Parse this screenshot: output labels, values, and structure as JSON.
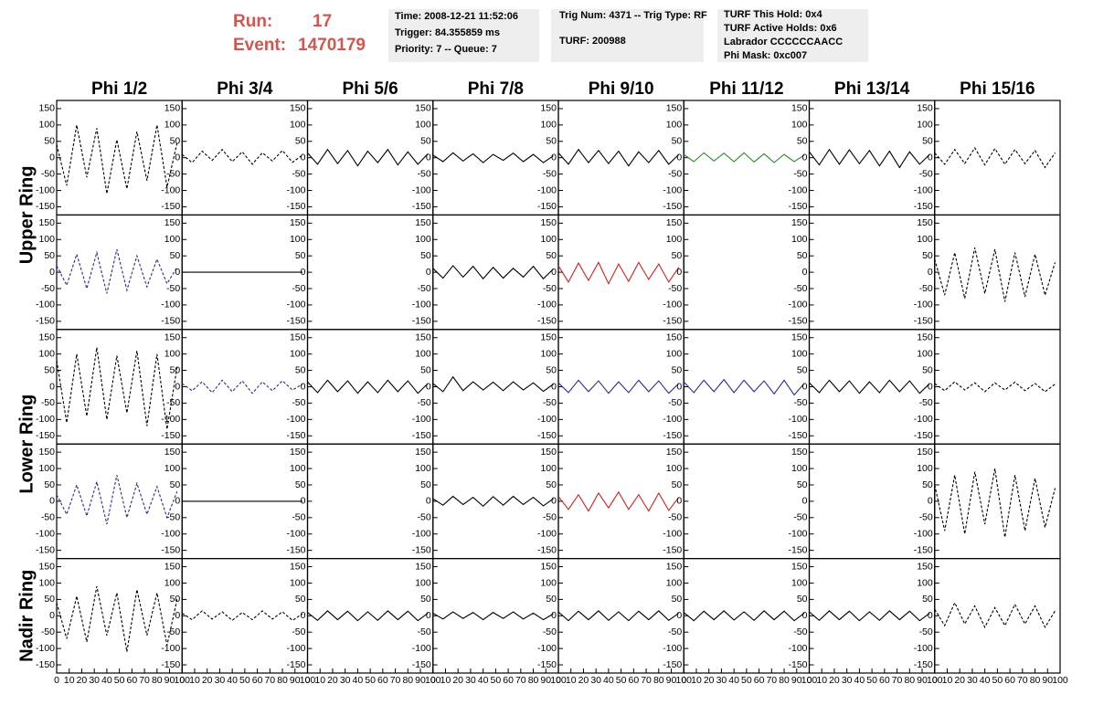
{
  "header": {
    "run_label": "Run:",
    "run": "17",
    "event_label": "Event:",
    "event": "1470179",
    "info_1": [
      "Time: 2008-12-21 11:52:06",
      "Trigger: 84.355859 ms",
      "Priority: 7 -- Queue: 7"
    ],
    "info_2": [
      "Trig Num: 4371 -- Trig Type: RF",
      "TURF: 200988"
    ],
    "info_3": [
      "TURF This Hold: 0x4",
      "TURF Active Holds: 0x6",
      "Labrador CCCCCCAACC",
      "Phi Mask: 0xc007"
    ]
  },
  "chart_data": {
    "type": "line",
    "columns": [
      "Phi 1/2",
      "Phi 3/4",
      "Phi 5/6",
      "Phi 7/8",
      "Phi 9/10",
      "Phi 11/12",
      "Phi 13/14",
      "Phi 15/16"
    ],
    "rings": [
      "Upper Ring",
      "Lower Ring",
      "Nadir Ring"
    ],
    "xlim": [
      0,
      100
    ],
    "xticks": [
      0,
      10,
      20,
      30,
      40,
      50,
      60,
      70,
      80,
      90,
      100
    ],
    "ylim": [
      -175,
      175
    ],
    "yticks": [
      150,
      100,
      50,
      0,
      -50,
      -100,
      -150
    ],
    "x": [
      0,
      8,
      16,
      24,
      32,
      40,
      48,
      56,
      64,
      72,
      80,
      88,
      96
    ],
    "panels": [
      [
        {
          "color": "#000000",
          "dashed": true,
          "values": [
            40,
            -85,
            100,
            -60,
            90,
            -110,
            55,
            -95,
            80,
            -70,
            100,
            -90,
            45
          ]
        },
        {
          "color": "#000000",
          "dashed": true,
          "values": [
            10,
            -15,
            20,
            -8,
            25,
            -12,
            18,
            -20,
            15,
            -10,
            22,
            -14,
            8
          ]
        },
        {
          "color": "#000000",
          "dashed": false,
          "values": [
            15,
            -20,
            25,
            -18,
            22,
            -25,
            20,
            -15,
            25,
            -22,
            18,
            -20,
            12
          ]
        },
        {
          "color": "#000000",
          "dashed": false,
          "values": [
            8,
            -12,
            15,
            -10,
            12,
            -15,
            10,
            -8,
            14,
            -12,
            10,
            -15,
            6
          ]
        },
        {
          "color": "#000000",
          "dashed": false,
          "values": [
            15,
            -20,
            25,
            -15,
            22,
            -18,
            20,
            -25,
            18,
            -15,
            22,
            -20,
            10
          ]
        },
        {
          "color": "#2e8b2e",
          "dashed": false,
          "values": [
            10,
            -12,
            15,
            -10,
            14,
            -12,
            15,
            -13,
            12,
            -15,
            10,
            -12,
            8
          ]
        },
        {
          "color": "#000000",
          "dashed": false,
          "values": [
            18,
            -22,
            25,
            -20,
            24,
            -18,
            22,
            -25,
            20,
            -30,
            18,
            -20,
            10
          ]
        },
        {
          "color": "#000000",
          "dashed": true,
          "values": [
            15,
            -20,
            25,
            -18,
            30,
            -22,
            28,
            -20,
            25,
            -18,
            22,
            -30,
            15
          ]
        }
      ],
      [
        {
          "color": "#2b2b8f",
          "dashed": true,
          "values": [
            20,
            -40,
            55,
            -50,
            60,
            -65,
            70,
            -55,
            50,
            -45,
            40,
            -35,
            15
          ]
        },
        {
          "color": "#000000",
          "dashed": false,
          "values": [
            0,
            0,
            0,
            0,
            0,
            0,
            0,
            0,
            0,
            0,
            0,
            0,
            0
          ]
        },
        {
          "color": "#000000",
          "dashed": false,
          "values": []
        },
        {
          "color": "#000000",
          "dashed": false,
          "values": [
            12,
            -18,
            20,
            -15,
            18,
            -20,
            15,
            -18,
            12,
            -15,
            18,
            -20,
            10
          ]
        },
        {
          "color": "#cc2222",
          "dashed": false,
          "values": [
            20,
            -30,
            28,
            -25,
            30,
            -35,
            25,
            -28,
            30,
            -22,
            25,
            -30,
            15
          ]
        },
        {
          "color": "#000000",
          "dashed": false,
          "values": []
        },
        {
          "color": "#000000",
          "dashed": false,
          "values": []
        },
        {
          "color": "#000000",
          "dashed": true,
          "values": [
            40,
            -70,
            60,
            -80,
            75,
            -65,
            70,
            -90,
            60,
            -75,
            55,
            -70,
            30
          ]
        }
      ],
      [
        {
          "color": "#000000",
          "dashed": true,
          "values": [
            80,
            -110,
            100,
            -90,
            120,
            -100,
            95,
            -80,
            110,
            -120,
            100,
            -130,
            60
          ]
        },
        {
          "color": "#2b2b8f",
          "dashed": true,
          "values": [
            10,
            -12,
            15,
            -18,
            20,
            -15,
            18,
            -20,
            15,
            -12,
            18,
            -10,
            8
          ]
        },
        {
          "color": "#000000",
          "dashed": false,
          "values": [
            15,
            -18,
            20,
            -15,
            18,
            -20,
            15,
            -18,
            20,
            -15,
            18,
            -20,
            10
          ]
        },
        {
          "color": "#000000",
          "dashed": false,
          "values": [
            10,
            -15,
            30,
            -12,
            15,
            -10,
            14,
            -12,
            15,
            -10,
            12,
            -14,
            8
          ]
        },
        {
          "color": "#2b2b8f",
          "dashed": false,
          "values": [
            12,
            -18,
            20,
            -15,
            18,
            -20,
            15,
            -18,
            20,
            -15,
            18,
            -20,
            10
          ]
        },
        {
          "color": "#2b2b8f",
          "dashed": false,
          "values": [
            15,
            -18,
            20,
            -15,
            22,
            -18,
            20,
            -15,
            18,
            -22,
            20,
            -25,
            10
          ]
        },
        {
          "color": "#000000",
          "dashed": false,
          "values": [
            12,
            -18,
            20,
            -15,
            18,
            -20,
            15,
            -18,
            20,
            -15,
            18,
            -20,
            10
          ]
        },
        {
          "color": "#000000",
          "dashed": true,
          "values": [
            10,
            -12,
            15,
            -10,
            12,
            -15,
            12,
            -10,
            14,
            -12,
            10,
            -15,
            8
          ]
        }
      ],
      [
        {
          "color": "#2b2b8f",
          "dashed": true,
          "values": [
            20,
            -40,
            50,
            -45,
            60,
            -70,
            80,
            -50,
            55,
            -40,
            45,
            -50,
            30
          ]
        },
        {
          "color": "#000000",
          "dashed": false,
          "values": [
            0,
            0,
            0,
            0,
            0,
            0,
            0,
            0,
            0,
            0,
            0,
            0,
            0
          ]
        },
        {
          "color": "#000000",
          "dashed": false,
          "values": []
        },
        {
          "color": "#000000",
          "dashed": false,
          "values": [
            8,
            -12,
            15,
            -10,
            12,
            -15,
            14,
            -12,
            15,
            -10,
            12,
            -14,
            8
          ]
        },
        {
          "color": "#cc2222",
          "dashed": false,
          "values": [
            15,
            -25,
            20,
            -30,
            25,
            -20,
            28,
            -25,
            20,
            -30,
            25,
            -28,
            12
          ]
        },
        {
          "color": "#000000",
          "dashed": false,
          "values": []
        },
        {
          "color": "#000000",
          "dashed": false,
          "values": []
        },
        {
          "color": "#000000",
          "dashed": true,
          "values": [
            50,
            -90,
            80,
            -100,
            90,
            -70,
            100,
            -110,
            80,
            -90,
            70,
            -80,
            40
          ]
        }
      ],
      [
        {
          "color": "#000000",
          "dashed": true,
          "values": [
            40,
            -70,
            60,
            -80,
            90,
            -60,
            70,
            -110,
            80,
            -60,
            70,
            -90,
            50
          ]
        },
        {
          "color": "#000000",
          "dashed": true,
          "values": [
            8,
            -12,
            15,
            -10,
            12,
            -14,
            10,
            -12,
            15,
            -10,
            12,
            -14,
            6
          ]
        },
        {
          "color": "#000000",
          "dashed": false,
          "values": [
            10,
            -14,
            15,
            -12,
            14,
            -15,
            12,
            -14,
            15,
            -12,
            14,
            -15,
            8
          ]
        },
        {
          "color": "#000000",
          "dashed": false,
          "values": [
            8,
            -10,
            12,
            -8,
            10,
            -12,
            10,
            -8,
            12,
            -10,
            8,
            -12,
            6
          ]
        },
        {
          "color": "#000000",
          "dashed": false,
          "values": [
            12,
            -15,
            14,
            -12,
            15,
            -14,
            12,
            -15,
            14,
            -12,
            15,
            -14,
            8
          ]
        },
        {
          "color": "#000000",
          "dashed": false,
          "values": [
            10,
            -15,
            14,
            -12,
            15,
            -13,
            12,
            -14,
            15,
            -12,
            14,
            -15,
            8
          ]
        },
        {
          "color": "#000000",
          "dashed": false,
          "values": [
            12,
            -14,
            15,
            -12,
            14,
            -15,
            12,
            -14,
            15,
            -12,
            14,
            -15,
            8
          ]
        },
        {
          "color": "#000000",
          "dashed": true,
          "values": [
            20,
            -30,
            40,
            -25,
            30,
            -35,
            25,
            -30,
            35,
            -25,
            30,
            -35,
            15
          ]
        }
      ]
    ]
  }
}
